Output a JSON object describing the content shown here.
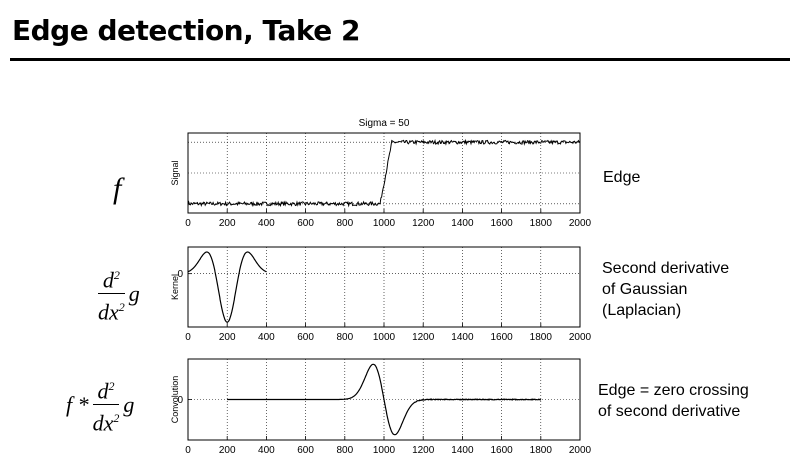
{
  "slide": {
    "title": "Edge detection, Take 2"
  },
  "figure_title": "Sigma = 50",
  "equations": {
    "f": "f",
    "d": "d",
    "dx": "dx",
    "exp": "2",
    "g": "g",
    "f_star": "f *"
  },
  "descriptions": {
    "edge": "Edge",
    "second_derivative": [
      "Second derivative",
      "of Gaussian",
      "(Laplacian)"
    ],
    "zero_crossing": [
      "Edge = zero crossing",
      "of second derivative"
    ]
  },
  "chart_data": [
    {
      "type": "line",
      "title": "Sigma = 50",
      "ylabel": "Signal",
      "xlim": [
        0,
        2000
      ],
      "xticks": [
        "0",
        "200",
        "400",
        "600",
        "800",
        "1000",
        "1200",
        "1400",
        "1600",
        "1800",
        "2000"
      ],
      "grid": true,
      "series": [
        {
          "x": [
            0,
            980,
            1040,
            2000
          ],
          "values": [
            0,
            0,
            1,
            1
          ]
        }
      ]
    },
    {
      "type": "line",
      "ylabel": "Kernel",
      "yticks": [
        "0"
      ],
      "xlim": [
        0,
        2000
      ],
      "xticks": [
        "0",
        "200",
        "400",
        "600",
        "800",
        "1000",
        "1200",
        "1400",
        "1600",
        "1800",
        "2000"
      ],
      "grid": true,
      "series": [
        {
          "x": [
            0,
            100,
            150,
            200,
            250,
            300,
            400
          ],
          "values": [
            0.05,
            0.4,
            0.2,
            -1,
            0.2,
            0.4,
            0.05
          ]
        }
      ]
    },
    {
      "type": "line",
      "ylabel": "Convolution",
      "yticks": [
        "0"
      ],
      "xlim": [
        0,
        2000
      ],
      "xticks": [
        "0",
        "200",
        "400",
        "600",
        "800",
        "1000",
        "1200",
        "1400",
        "1600",
        "1800",
        "2000"
      ],
      "grid": true,
      "series": [
        {
          "x": [
            200,
            800,
            850,
            950,
            1000,
            1050,
            1150,
            1200,
            1800
          ],
          "values": [
            0,
            0,
            0.05,
            1,
            0,
            -1,
            -0.05,
            0,
            0
          ]
        }
      ]
    }
  ]
}
